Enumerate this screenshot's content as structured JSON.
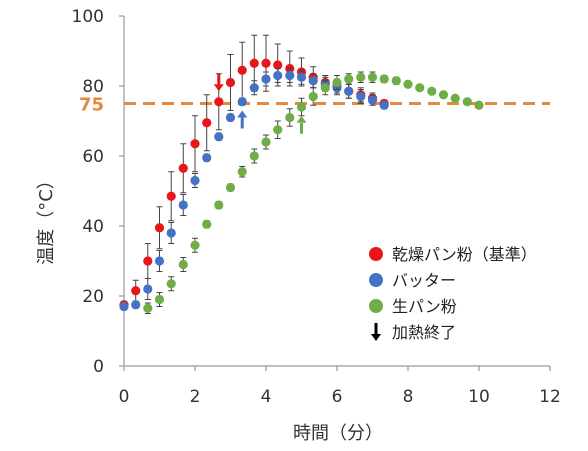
{
  "chart_data": {
    "type": "scatter",
    "xlabel": "時間（分）",
    "ylabel": "温度（°C）",
    "xlim": [
      0,
      12
    ],
    "ylim": [
      0,
      100
    ],
    "x_ticks": [
      0,
      2,
      4,
      6,
      8,
      10,
      12
    ],
    "y_ticks": [
      0,
      20,
      40,
      60,
      80,
      100
    ],
    "grid": false,
    "legend_position": "right",
    "reference_line": {
      "y": 75,
      "label": "75",
      "color": "#e38a3f",
      "style": "dashed"
    },
    "series": [
      {
        "name": "乾燥パン粉（基準）",
        "color": "#e8161b",
        "points": [
          {
            "x": 0.0,
            "y": 17.5,
            "err": 1.0
          },
          {
            "x": 0.33,
            "y": 21.5,
            "err": 3.0
          },
          {
            "x": 0.67,
            "y": 30.0,
            "err": 5.0
          },
          {
            "x": 1.0,
            "y": 39.5,
            "err": 6.0
          },
          {
            "x": 1.33,
            "y": 48.5,
            "err": 7.0
          },
          {
            "x": 1.67,
            "y": 56.5,
            "err": 7.0
          },
          {
            "x": 2.0,
            "y": 63.5,
            "err": 8.0
          },
          {
            "x": 2.33,
            "y": 69.5,
            "err": 8.0
          },
          {
            "x": 2.67,
            "y": 75.5,
            "err": 8.0
          },
          {
            "x": 3.0,
            "y": 81.0,
            "err": 8.0
          },
          {
            "x": 3.33,
            "y": 84.5,
            "err": 8.0
          },
          {
            "x": 3.67,
            "y": 86.5,
            "err": 8.0
          },
          {
            "x": 4.0,
            "y": 86.5,
            "err": 8.0
          },
          {
            "x": 4.33,
            "y": 86.0,
            "err": 6.0
          },
          {
            "x": 4.67,
            "y": 85.0,
            "err": 5.0
          },
          {
            "x": 5.0,
            "y": 84.0,
            "err": 4.0
          },
          {
            "x": 5.33,
            "y": 82.5,
            "err": 3.0
          },
          {
            "x": 5.67,
            "y": 81.0,
            "err": 2.0
          },
          {
            "x": 6.0,
            "y": 80.0,
            "err": 2.0
          },
          {
            "x": 6.33,
            "y": 78.5,
            "err": 2.0
          },
          {
            "x": 6.67,
            "y": 77.5,
            "err": 2.0
          },
          {
            "x": 7.0,
            "y": 76.5,
            "err": 1.5
          },
          {
            "x": 7.33,
            "y": 75.0,
            "err": 1.0
          }
        ]
      },
      {
        "name": "バッター",
        "color": "#4472c4",
        "points": [
          {
            "x": 0.0,
            "y": 17.0,
            "err": 1.0
          },
          {
            "x": 0.33,
            "y": 17.5,
            "err": 1.0
          },
          {
            "x": 0.67,
            "y": 22.0,
            "err": 3.0
          },
          {
            "x": 1.0,
            "y": 30.0,
            "err": 3.0
          },
          {
            "x": 1.33,
            "y": 38.0,
            "err": 3.0
          },
          {
            "x": 1.67,
            "y": 46.0,
            "err": 3.0
          },
          {
            "x": 2.0,
            "y": 53.0,
            "err": 2.0
          },
          {
            "x": 2.33,
            "y": 59.5,
            "err": 1.0
          },
          {
            "x": 2.67,
            "y": 65.5,
            "err": 1.0
          },
          {
            "x": 3.0,
            "y": 71.0,
            "err": 1.0
          },
          {
            "x": 3.33,
            "y": 75.5,
            "err": 1.0
          },
          {
            "x": 3.67,
            "y": 79.5,
            "err": 2.0
          },
          {
            "x": 4.0,
            "y": 82.0,
            "err": 2.0
          },
          {
            "x": 4.33,
            "y": 83.0,
            "err": 2.0
          },
          {
            "x": 4.67,
            "y": 83.0,
            "err": 2.0
          },
          {
            "x": 5.0,
            "y": 82.5,
            "err": 2.0
          },
          {
            "x": 5.33,
            "y": 81.5,
            "err": 2.0
          },
          {
            "x": 5.67,
            "y": 80.5,
            "err": 2.0
          },
          {
            "x": 6.0,
            "y": 79.5,
            "err": 2.0
          },
          {
            "x": 6.33,
            "y": 78.5,
            "err": 2.0
          },
          {
            "x": 6.67,
            "y": 77.0,
            "err": 2.0
          },
          {
            "x": 7.0,
            "y": 76.0,
            "err": 1.5
          },
          {
            "x": 7.33,
            "y": 74.5,
            "err": 1.0
          }
        ]
      },
      {
        "name": "生パン粉",
        "color": "#70ad47",
        "points": [
          {
            "x": 0.67,
            "y": 16.5,
            "err": 1.5
          },
          {
            "x": 1.0,
            "y": 19.0,
            "err": 2.0
          },
          {
            "x": 1.33,
            "y": 23.5,
            "err": 2.0
          },
          {
            "x": 1.67,
            "y": 29.0,
            "err": 2.0
          },
          {
            "x": 2.0,
            "y": 34.5,
            "err": 2.0
          },
          {
            "x": 2.33,
            "y": 40.5,
            "err": 1.0
          },
          {
            "x": 2.67,
            "y": 46.0,
            "err": 1.0
          },
          {
            "x": 3.0,
            "y": 51.0,
            "err": 1.0
          },
          {
            "x": 3.33,
            "y": 55.5,
            "err": 1.5
          },
          {
            "x": 3.67,
            "y": 60.0,
            "err": 2.0
          },
          {
            "x": 4.0,
            "y": 64.0,
            "err": 2.0
          },
          {
            "x": 4.33,
            "y": 67.5,
            "err": 2.5
          },
          {
            "x": 4.67,
            "y": 71.0,
            "err": 2.5
          },
          {
            "x": 5.0,
            "y": 74.0,
            "err": 2.5
          },
          {
            "x": 5.33,
            "y": 77.0,
            "err": 2.5
          },
          {
            "x": 5.67,
            "y": 79.5,
            "err": 2.0
          },
          {
            "x": 6.0,
            "y": 81.0,
            "err": 2.0
          },
          {
            "x": 6.33,
            "y": 82.0,
            "err": 1.5
          },
          {
            "x": 6.67,
            "y": 82.5,
            "err": 1.5
          },
          {
            "x": 7.0,
            "y": 82.5,
            "err": 1.5
          },
          {
            "x": 7.33,
            "y": 82.0,
            "err": 1.0
          },
          {
            "x": 7.67,
            "y": 81.5,
            "err": 1.0
          },
          {
            "x": 8.0,
            "y": 80.5,
            "err": 0
          },
          {
            "x": 8.33,
            "y": 79.5,
            "err": 0
          },
          {
            "x": 8.67,
            "y": 78.5,
            "err": 0
          },
          {
            "x": 9.0,
            "y": 77.5,
            "err": 0
          },
          {
            "x": 9.33,
            "y": 76.5,
            "err": 0
          },
          {
            "x": 9.67,
            "y": 75.5,
            "err": 0
          },
          {
            "x": 10.0,
            "y": 74.5,
            "err": 0
          }
        ]
      }
    ],
    "markers": [
      {
        "series": 0,
        "x": 2.67,
        "y": 75.5,
        "direction": "down",
        "color": "#e8161b"
      },
      {
        "series": 1,
        "x": 3.33,
        "y": 75.5,
        "direction": "up",
        "color": "#4472c4"
      },
      {
        "series": 2,
        "x": 5.0,
        "y": 74.0,
        "direction": "up",
        "color": "#70ad47"
      }
    ],
    "legend": [
      {
        "label": "乾燥パン粉（基準）",
        "symbol": "dot",
        "color": "#e8161b"
      },
      {
        "label": "バッター",
        "symbol": "dot",
        "color": "#4472c4"
      },
      {
        "label": "生パン粉",
        "symbol": "dot",
        "color": "#70ad47"
      },
      {
        "label": "加熱終了",
        "symbol": "arrow-down",
        "color": "#000000"
      }
    ]
  }
}
